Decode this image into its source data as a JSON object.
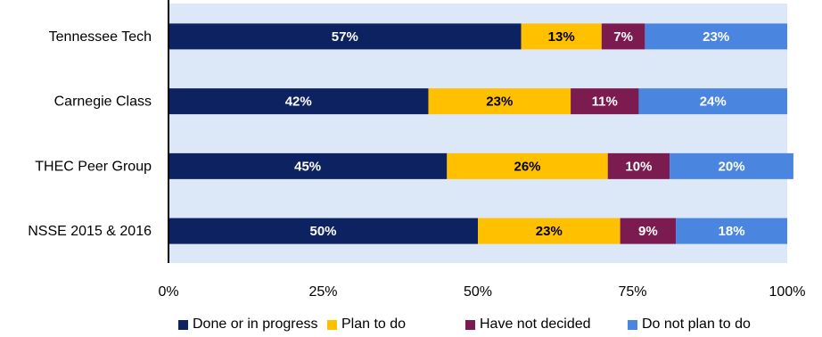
{
  "chart_data": {
    "type": "bar",
    "orientation": "horizontal",
    "stacked": "percent",
    "categories": [
      "Tennessee Tech",
      "Carnegie Class",
      "THEC Peer Group",
      "NSSE 2015 & 2016"
    ],
    "series": [
      {
        "name": "Done or in progress",
        "color": "#0d2260",
        "label_color": "#ffffff",
        "values": [
          57,
          42,
          45,
          50
        ]
      },
      {
        "name": "Plan to do",
        "color": "#ffc000",
        "label_color": "#000000",
        "values": [
          13,
          23,
          26,
          23
        ]
      },
      {
        "name": "Have not decided",
        "color": "#7b1b4f",
        "label_color": "#ffffff",
        "values": [
          7,
          11,
          10,
          9
        ]
      },
      {
        "name": "Do not plan to do",
        "color": "#4a86e0",
        "label_color": "#ffffff",
        "values": [
          23,
          24,
          20,
          18
        ]
      }
    ],
    "x_ticks": [
      "0%",
      "25%",
      "50%",
      "75%",
      "100%"
    ],
    "xlim": [
      0,
      100
    ],
    "plot_background": "#dce7f8",
    "legend_position": "bottom",
    "grid": false
  }
}
